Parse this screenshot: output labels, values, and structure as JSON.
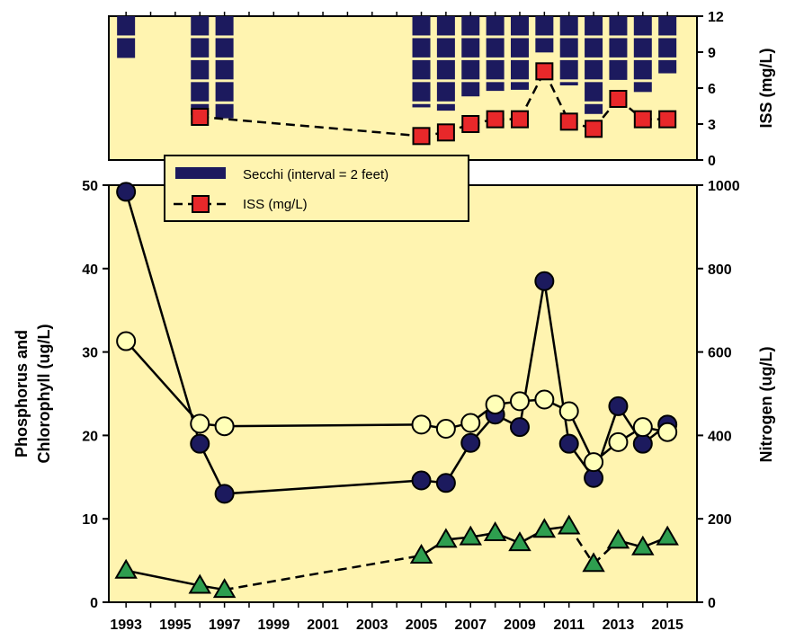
{
  "chart_data": [
    {
      "type": "bar",
      "panel": "top",
      "ylabel_right": "ISS (mg/L)",
      "y_right_ticks": [
        "12",
        "9",
        "6",
        "3",
        "0"
      ],
      "y_right_range": [
        0,
        12
      ],
      "series": [
        {
          "name": "Secchi (interval = 2 feet)",
          "unit": "feet",
          "segment_interval": 2,
          "color": "#1c1a5e",
          "points": [
            {
              "x": 1993,
              "value": 3.8
            },
            {
              "x": 1996,
              "value": 9.0
            },
            {
              "x": 1997,
              "value": 9.3
            },
            {
              "x": 2005,
              "value": 8.3
            },
            {
              "x": 2006,
              "value": 8.6
            },
            {
              "x": 2007,
              "value": 7.3
            },
            {
              "x": 2008,
              "value": 6.8
            },
            {
              "x": 2009,
              "value": 6.7
            },
            {
              "x": 2010,
              "value": 3.3
            },
            {
              "x": 2011,
              "value": 6.3
            },
            {
              "x": 2012,
              "value": 8.9
            },
            {
              "x": 2013,
              "value": 5.8
            },
            {
              "x": 2014,
              "value": 6.9
            },
            {
              "x": 2015,
              "value": 5.2
            }
          ]
        },
        {
          "name": "ISS (mg/L)",
          "type": "line",
          "color": "#e8282a",
          "points": [
            {
              "x": 1996,
              "value": 3.6
            },
            {
              "x": 2005,
              "value": 2.0
            },
            {
              "x": 2006,
              "value": 2.3
            },
            {
              "x": 2007,
              "value": 3.0
            },
            {
              "x": 2008,
              "value": 3.4
            },
            {
              "x": 2009,
              "value": 3.4
            },
            {
              "x": 2010,
              "value": 7.4
            },
            {
              "x": 2011,
              "value": 3.2
            },
            {
              "x": 2012,
              "value": 2.6
            },
            {
              "x": 2013,
              "value": 5.1
            },
            {
              "x": 2014,
              "value": 3.4
            },
            {
              "x": 2015,
              "value": 3.4
            }
          ]
        }
      ]
    },
    {
      "type": "line",
      "panel": "bottom",
      "ylabel_left": [
        "Phosphorus and",
        "Chlorophyll (ug/L)"
      ],
      "ylabel_right": "Nitrogen (ug/L)",
      "x_ticks": [
        "1993",
        "1995",
        "1997",
        "1999",
        "2001",
        "2003",
        "2005",
        "2007",
        "2009",
        "2011",
        "2013",
        "2015"
      ],
      "xlim": [
        1992.3,
        2016.2
      ],
      "y_left_ticks": [
        "50",
        "40",
        "30",
        "20",
        "10",
        "0"
      ],
      "y_left_range": [
        0,
        50
      ],
      "y_right_ticks": [
        "1000",
        "800",
        "600",
        "400",
        "200",
        "0"
      ],
      "y_right_range": [
        0,
        1000
      ],
      "series": [
        {
          "marker": "circle",
          "color": "#1c1a5e",
          "axis": "left",
          "points": [
            {
              "x": 1993,
              "y": 49.2
            },
            {
              "x": 1996,
              "y": 19.0
            },
            {
              "x": 1997,
              "y": 13.0
            },
            {
              "x": 2005,
              "y": 14.6
            },
            {
              "x": 2006,
              "y": 14.3
            },
            {
              "x": 2007,
              "y": 19.1
            },
            {
              "x": 2008,
              "y": 22.5
            },
            {
              "x": 2009,
              "y": 21.0
            },
            {
              "x": 2010,
              "y": 38.5
            },
            {
              "x": 2011,
              "y": 19.0
            },
            {
              "x": 2012,
              "y": 14.9
            },
            {
              "x": 2013,
              "y": 23.5
            },
            {
              "x": 2014,
              "y": 19.0
            },
            {
              "x": 2015,
              "y": 21.3
            }
          ]
        },
        {
          "marker": "circle",
          "color": "#ffffb8",
          "axis": "left",
          "points": [
            {
              "x": 1993,
              "y": 31.3
            },
            {
              "x": 1996,
              "y": 21.4
            },
            {
              "x": 1997,
              "y": 21.1
            },
            {
              "x": 2005,
              "y": 21.3
            },
            {
              "x": 2006,
              "y": 20.8
            },
            {
              "x": 2007,
              "y": 21.5
            },
            {
              "x": 2008,
              "y": 23.7
            },
            {
              "x": 2009,
              "y": 24.1
            },
            {
              "x": 2010,
              "y": 24.3
            },
            {
              "x": 2011,
              "y": 22.9
            },
            {
              "x": 2012,
              "y": 16.8
            },
            {
              "x": 2013,
              "y": 19.2
            },
            {
              "x": 2014,
              "y": 21.0
            },
            {
              "x": 2015,
              "y": 20.4
            }
          ]
        },
        {
          "marker": "triangle",
          "color": "#2e9e4f",
          "axis": "right",
          "points": [
            {
              "x": 1993,
              "y": 76
            },
            {
              "x": 1996,
              "y": 40
            },
            {
              "x": 1997,
              "y": 30
            },
            {
              "x": 2005,
              "y": 112,
              "dashed_from_previous": true
            },
            {
              "x": 2006,
              "y": 150
            },
            {
              "x": 2007,
              "y": 156
            },
            {
              "x": 2008,
              "y": 166
            },
            {
              "x": 2009,
              "y": 142
            },
            {
              "x": 2010,
              "y": 174
            },
            {
              "x": 2011,
              "y": 182
            },
            {
              "x": 2012,
              "y": 92,
              "dashed_from_previous": true
            },
            {
              "x": 2013,
              "y": 148,
              "dashed_from_previous": true
            },
            {
              "x": 2014,
              "y": 132
            },
            {
              "x": 2015,
              "y": 156
            }
          ]
        }
      ]
    }
  ],
  "colors": {
    "plot_background": "#fff4b0",
    "secchi": "#1c1a5e",
    "iss": "#e8282a",
    "phosphorus": "#1c1a5e",
    "chlorophyll": "#ffffb8",
    "nitrogen": "#2e9e4f"
  }
}
